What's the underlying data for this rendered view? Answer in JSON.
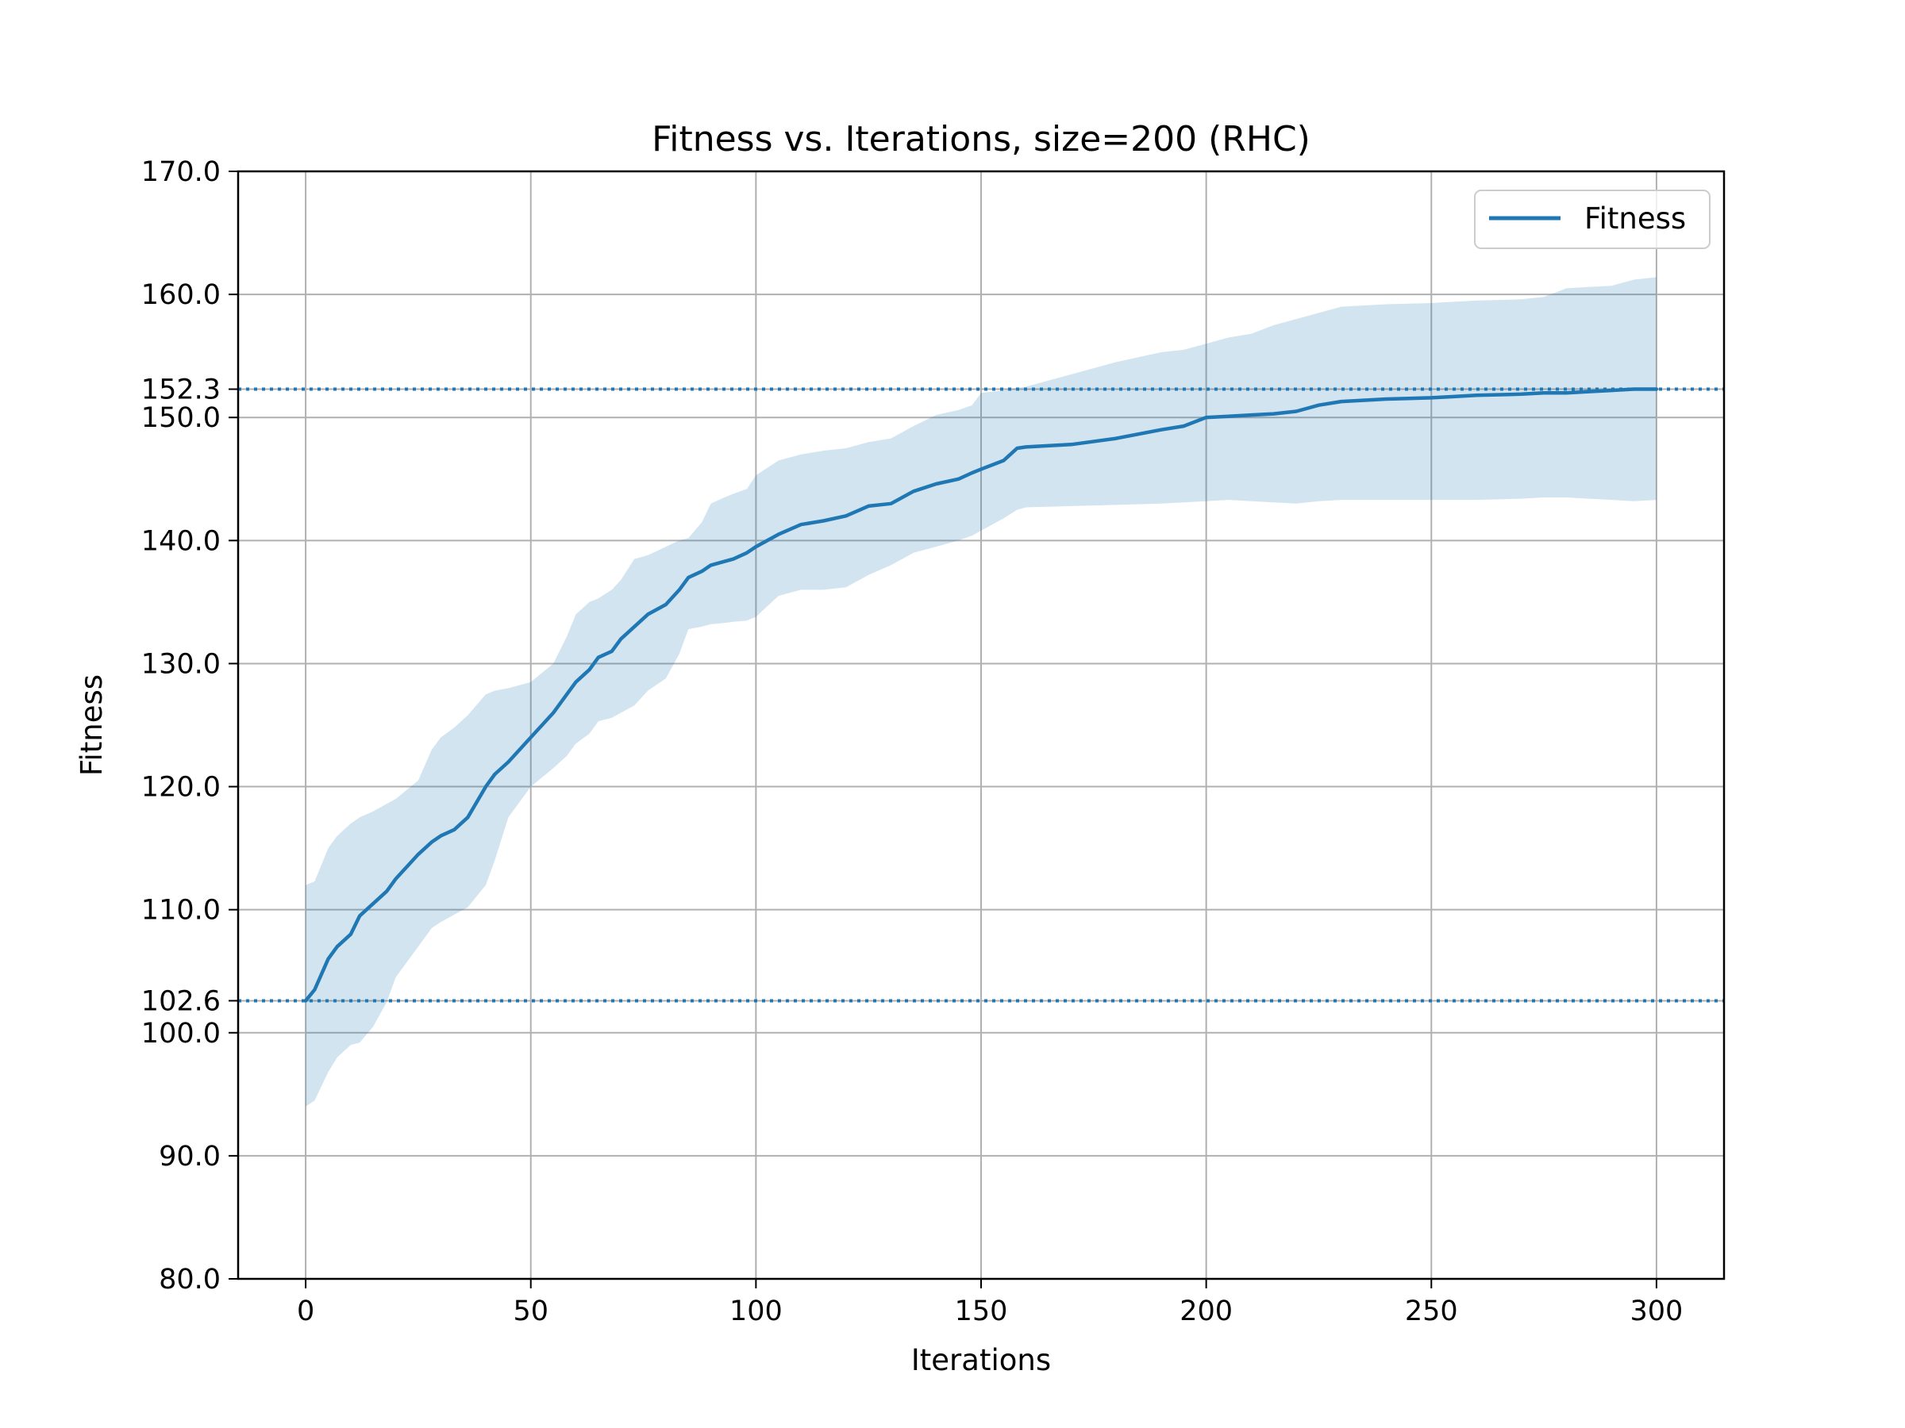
{
  "chart_data": {
    "type": "line",
    "title": "Fitness vs. Iterations, size=200 (RHC)",
    "xlabel": "Iterations",
    "ylabel": "Fitness",
    "xlim": [
      -15,
      315
    ],
    "ylim": [
      80,
      170
    ],
    "xticks": [
      0,
      50,
      100,
      150,
      200,
      250,
      300
    ],
    "xtick_labels": [
      "0",
      "50",
      "100",
      "150",
      "200",
      "250",
      "300"
    ],
    "yticks": [
      80,
      90,
      100,
      102.6,
      110,
      120,
      130,
      140,
      150,
      152.3,
      160,
      170
    ],
    "ytick_labels": [
      "80.0",
      "90.0",
      "100.0",
      "102.6",
      "110.0",
      "120.0",
      "130.0",
      "140.0",
      "150.0",
      "152.3",
      "160.0",
      "170.0"
    ],
    "grid": true,
    "legend": "top-right",
    "reference_lines": [
      102.6,
      152.3
    ],
    "colors": {
      "line": "#1f77b4",
      "band": "#1f77b4",
      "grid": "#b0b0b0"
    },
    "series": [
      {
        "name": "Fitness",
        "x": [
          0,
          2,
          5,
          7,
          10,
          12,
          15,
          18,
          20,
          25,
          28,
          30,
          33,
          36,
          40,
          42,
          45,
          50,
          55,
          58,
          60,
          63,
          65,
          68,
          70,
          73,
          76,
          80,
          83,
          85,
          88,
          90,
          93,
          95,
          98,
          100,
          105,
          110,
          115,
          120,
          125,
          130,
          135,
          140,
          145,
          148,
          150,
          155,
          158,
          160,
          170,
          180,
          190,
          195,
          200,
          205,
          210,
          215,
          220,
          225,
          230,
          240,
          250,
          255,
          260,
          270,
          275,
          280,
          285,
          290,
          295,
          300
        ],
        "mean": [
          102.6,
          103.5,
          106,
          107,
          108,
          109.5,
          110.5,
          111.5,
          112.5,
          114.5,
          115.5,
          116,
          116.5,
          117.5,
          120,
          121,
          122,
          124,
          126,
          127.5,
          128.5,
          129.5,
          130.5,
          131,
          132,
          133,
          134,
          134.8,
          136,
          137,
          137.5,
          138,
          138.3,
          138.5,
          139,
          139.5,
          140.5,
          141.3,
          141.6,
          142,
          142.8,
          143,
          144,
          144.6,
          145,
          145.5,
          145.8,
          146.5,
          147.5,
          147.6,
          147.8,
          148.3,
          149,
          149.3,
          150,
          150.1,
          150.2,
          150.3,
          150.5,
          151,
          151.3,
          151.5,
          151.6,
          151.7,
          151.8,
          151.9,
          152,
          152,
          152.1,
          152.2,
          152.3,
          152.3
        ],
        "upper": [
          112,
          112.3,
          115,
          116,
          117,
          117.5,
          118,
          118.6,
          119,
          120.5,
          123,
          124,
          124.8,
          125.8,
          127.5,
          127.8,
          128,
          128.5,
          130,
          132.2,
          134,
          135,
          135.3,
          136,
          136.8,
          138.5,
          138.8,
          139.5,
          140,
          140.2,
          141.5,
          143,
          143.5,
          143.8,
          144.2,
          145.3,
          146.5,
          147,
          147.3,
          147.5,
          148,
          148.3,
          149.3,
          150.2,
          150.6,
          151,
          152,
          152.2,
          152.4,
          152.5,
          153.5,
          154.5,
          155.3,
          155.5,
          156,
          156.5,
          156.8,
          157.5,
          158,
          158.5,
          159,
          159.2,
          159.3,
          159.4,
          159.5,
          159.6,
          159.8,
          160.5,
          160.6,
          160.7,
          161.2,
          161.4
        ],
        "lower": [
          94,
          94.5,
          96.8,
          98,
          99,
          99.2,
          100.5,
          102.5,
          104.5,
          107,
          108.5,
          109,
          109.6,
          110.2,
          112,
          114,
          117.5,
          120,
          121.5,
          122.5,
          123.5,
          124.3,
          125.3,
          125.6,
          126,
          126.6,
          127.8,
          128.8,
          130.8,
          132.8,
          133,
          133.2,
          133.3,
          133.4,
          133.5,
          133.8,
          135.5,
          136,
          136,
          136.2,
          137.2,
          138,
          139,
          139.5,
          140,
          140.4,
          140.8,
          141.8,
          142.5,
          142.7,
          142.8,
          142.9,
          143,
          143.1,
          143.2,
          143.3,
          143.2,
          143.1,
          143,
          143.2,
          143.3,
          143.3,
          143.3,
          143.3,
          143.3,
          143.4,
          143.5,
          143.5,
          143.4,
          143.3,
          143.2,
          143.3
        ]
      }
    ]
  }
}
